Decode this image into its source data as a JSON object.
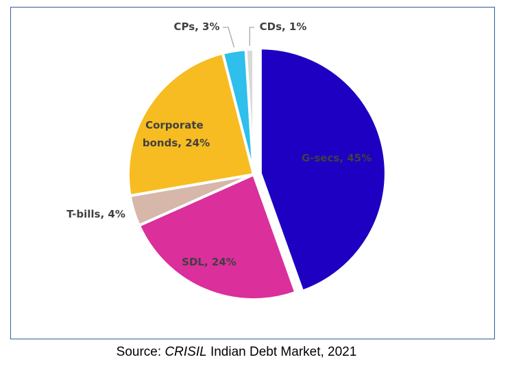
{
  "chart_data": {
    "type": "pie",
    "title": "",
    "slices": [
      {
        "label": "G-secs, 45%",
        "value": 45,
        "color": "#1d00c2",
        "exploded": true
      },
      {
        "label": "SDL, 24%",
        "value": 24,
        "color": "#db2f9b",
        "exploded": false
      },
      {
        "label": "T-bills, 4%",
        "value": 4,
        "color": "#d6b7a9",
        "exploded": false
      },
      {
        "label": "Corporate bonds, 24%",
        "value": 24,
        "color": "#f6bc21",
        "exploded": false
      },
      {
        "label": "CPs, 3%",
        "value": 3,
        "color": "#2ebfec",
        "exploded": false
      },
      {
        "label": "CDs, 1%",
        "value": 1,
        "color": "#d9d9d9",
        "exploded": false
      }
    ],
    "label_lines": {
      "corporate_line1": "Corporate",
      "corporate_line2": "bonds, 24%"
    },
    "leader_line_color": "#a6a6a6",
    "start_angle_deg": 0,
    "direction": "clockwise"
  },
  "source": {
    "prefix": "Source: ",
    "publisher": "CRISIL",
    "suffix": " Indian Debt Market, 2021"
  }
}
